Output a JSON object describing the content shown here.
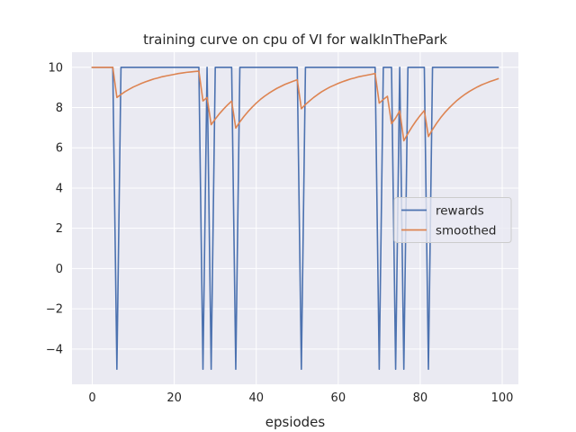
{
  "chart_data": {
    "type": "line",
    "title": "training curve on cpu of VI for walkInThePark",
    "xlabel": "epsiodes",
    "ylabel": "",
    "xlim": [
      -4.95,
      103.95
    ],
    "ylim": [
      -5.75,
      10.75
    ],
    "xticks": [
      0,
      20,
      40,
      60,
      80,
      100
    ],
    "yticks": [
      -4,
      -2,
      0,
      2,
      4,
      6,
      8,
      10
    ],
    "grid": true,
    "legend_position": "center-right",
    "background_color": "#eaeaf2",
    "grid_color": "#ffffff",
    "series": [
      {
        "name": "rewards",
        "color": "#4c72b0",
        "x": [
          0,
          1,
          2,
          3,
          4,
          5,
          6,
          7,
          8,
          9,
          10,
          11,
          12,
          13,
          14,
          15,
          16,
          17,
          18,
          19,
          20,
          21,
          22,
          23,
          24,
          25,
          26,
          27,
          28,
          29,
          30,
          31,
          32,
          33,
          34,
          35,
          36,
          37,
          38,
          39,
          40,
          41,
          42,
          43,
          44,
          45,
          46,
          47,
          48,
          49,
          50,
          51,
          52,
          53,
          54,
          55,
          56,
          57,
          58,
          59,
          60,
          61,
          62,
          63,
          64,
          65,
          66,
          67,
          68,
          69,
          70,
          71,
          72,
          73,
          74,
          75,
          76,
          77,
          78,
          79,
          80,
          81,
          82,
          83,
          84,
          85,
          86,
          87,
          88,
          89,
          90,
          91,
          92,
          93,
          94,
          95,
          96,
          97,
          98,
          99
        ],
        "y": [
          10,
          10,
          10,
          10,
          10,
          10,
          -5,
          10,
          10,
          10,
          10,
          10,
          10,
          10,
          10,
          10,
          10,
          10,
          10,
          10,
          10,
          10,
          10,
          10,
          10,
          10,
          10,
          -5,
          10,
          -5,
          10,
          10,
          10,
          10,
          10,
          -5,
          10,
          10,
          10,
          10,
          10,
          10,
          10,
          10,
          10,
          10,
          10,
          10,
          10,
          10,
          10,
          -5,
          10,
          10,
          10,
          10,
          10,
          10,
          10,
          10,
          10,
          10,
          10,
          10,
          10,
          10,
          10,
          10,
          10,
          10,
          -5,
          10,
          10,
          10,
          -5,
          10,
          -5,
          10,
          10,
          10,
          10,
          10,
          -5,
          10,
          10,
          10,
          10,
          10,
          10,
          10,
          10,
          10,
          10,
          10,
          10,
          10,
          10,
          10,
          10,
          10
        ]
      },
      {
        "name": "smoothed",
        "color": "#dd8452",
        "x": [
          0,
          1,
          2,
          3,
          4,
          5,
          6,
          7,
          8,
          9,
          10,
          11,
          12,
          13,
          14,
          15,
          16,
          17,
          18,
          19,
          20,
          21,
          22,
          23,
          24,
          25,
          26,
          27,
          28,
          29,
          30,
          31,
          32,
          33,
          34,
          35,
          36,
          37,
          38,
          39,
          40,
          41,
          42,
          43,
          44,
          45,
          46,
          47,
          48,
          49,
          50,
          51,
          52,
          53,
          54,
          55,
          56,
          57,
          58,
          59,
          60,
          61,
          62,
          63,
          64,
          65,
          66,
          67,
          68,
          69,
          70,
          71,
          72,
          73,
          74,
          75,
          76,
          77,
          78,
          79,
          80,
          81,
          82,
          83,
          84,
          85,
          86,
          87,
          88,
          89,
          90,
          91,
          92,
          93,
          94,
          95,
          96,
          97,
          98,
          99
        ],
        "y": [
          10,
          10,
          10,
          10,
          10,
          10,
          8.5,
          8.65,
          8.79,
          8.91,
          9.02,
          9.11,
          9.2,
          9.28,
          9.35,
          9.42,
          9.47,
          9.53,
          9.57,
          9.61,
          9.65,
          9.69,
          9.72,
          9.75,
          9.77,
          9.79,
          9.81,
          8.33,
          8.5,
          7.15,
          7.43,
          7.69,
          7.92,
          8.13,
          8.32,
          6.98,
          7.29,
          7.56,
          7.8,
          8.02,
          8.22,
          8.4,
          8.56,
          8.7,
          8.83,
          8.95,
          9.05,
          9.15,
          9.23,
          9.31,
          9.38,
          7.94,
          8.15,
          8.33,
          8.5,
          8.65,
          8.79,
          8.91,
          9.02,
          9.11,
          9.2,
          9.28,
          9.35,
          9.42,
          9.47,
          9.53,
          9.57,
          9.61,
          9.65,
          9.69,
          8.22,
          8.4,
          8.56,
          7.2,
          7.48,
          7.84,
          6.35,
          6.71,
          7.04,
          7.34,
          7.61,
          7.85,
          6.56,
          6.91,
          7.22,
          7.5,
          7.75,
          7.97,
          8.17,
          8.36,
          8.52,
          8.67,
          8.8,
          8.92,
          9.03,
          9.13,
          9.21,
          9.29,
          9.36,
          9.43
        ]
      }
    ]
  }
}
